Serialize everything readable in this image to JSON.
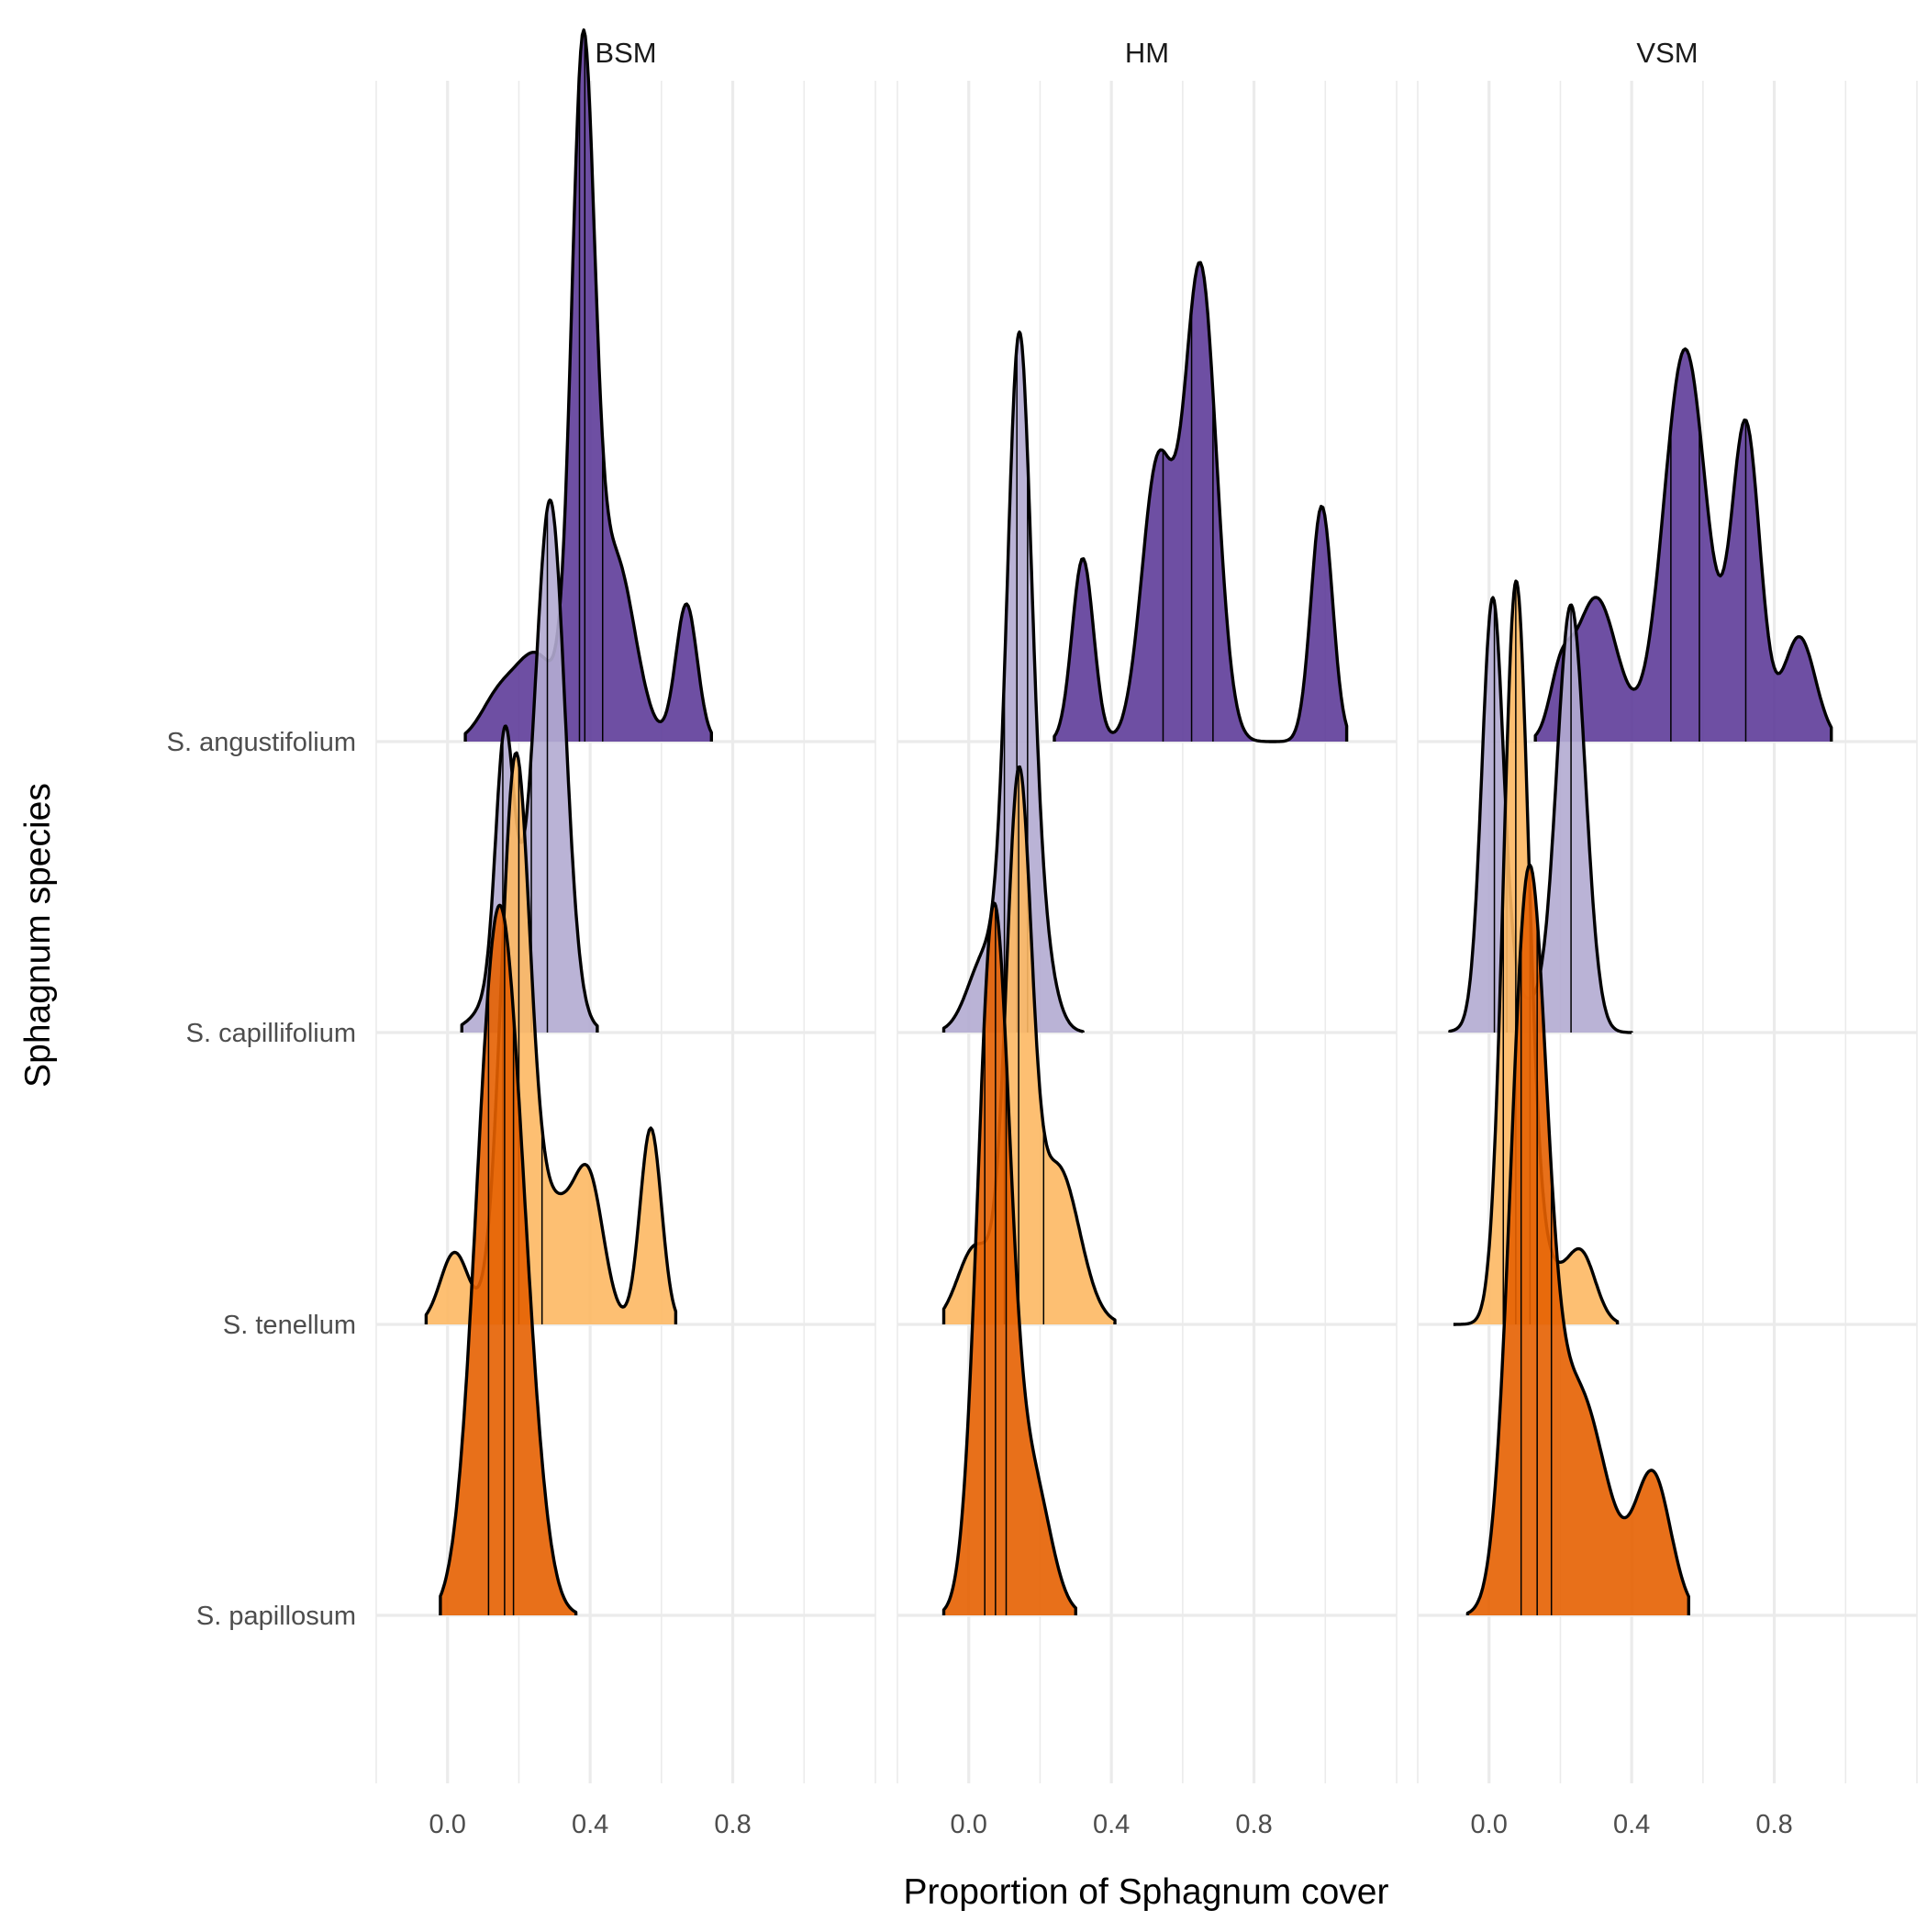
{
  "chart_data": {
    "type": "ridgeline",
    "xlabel": "Proportion of Sphagnum cover",
    "ylabel": "Sphagnum species",
    "facets": [
      "BSM",
      "HM",
      "VSM"
    ],
    "x_ticks": [
      "0.0",
      "0.4",
      "0.8"
    ],
    "x_tick_values": [
      0.0,
      0.4,
      0.8
    ],
    "xlim": [
      -0.2,
      1.2
    ],
    "y_categories": [
      "S. angustifolium",
      "S. capillifolium",
      "S. tenellum",
      "S. papillosum"
    ],
    "grid": true,
    "quantile_lines": [
      0.25,
      0.5,
      0.75
    ],
    "colors": {
      "S. angustifolium": "#5e3c99",
      "S. capillifolium": "#b2abd2",
      "S. tenellum": "#fdb863",
      "S. papillosum": "#e66101"
    },
    "series": [
      {
        "facet": "BSM",
        "species": "S. angustifolium",
        "range": [
          0.05,
          0.74
        ],
        "quantiles": [
          0.37,
          0.385,
          0.435
        ],
        "peaks": [
          [
            0.14,
            0.05,
            0.06
          ],
          [
            0.25,
            0.06,
            0.13
          ],
          [
            0.38,
            0.032,
            1.0
          ],
          [
            0.47,
            0.055,
            0.28
          ],
          [
            0.67,
            0.03,
            0.21
          ]
        ]
      },
      {
        "facet": "HM",
        "species": "S. angustifolium",
        "range": [
          0.24,
          1.06
        ],
        "quantiles": [
          0.545,
          0.625,
          0.685
        ],
        "peaks": [
          [
            0.32,
            0.03,
            0.28
          ],
          [
            0.53,
            0.045,
            0.42
          ],
          [
            0.65,
            0.045,
            0.72
          ],
          [
            0.99,
            0.03,
            0.36
          ]
        ]
      },
      {
        "facet": "VSM",
        "species": "S. angustifolium",
        "range": [
          0.13,
          0.96
        ],
        "quantiles": [
          0.51,
          0.59,
          0.72
        ],
        "peaks": [
          [
            0.2,
            0.03,
            0.08
          ],
          [
            0.3,
            0.06,
            0.22
          ],
          [
            0.55,
            0.06,
            0.6
          ],
          [
            0.72,
            0.04,
            0.48
          ],
          [
            0.87,
            0.045,
            0.16
          ]
        ]
      },
      {
        "facet": "BSM",
        "species": "S. capillifolium",
        "range": [
          0.04,
          0.42
        ],
        "quantiles": [
          0.155,
          0.235,
          0.28
        ],
        "peaks": [
          [
            0.16,
            0.025,
            0.35
          ],
          [
            0.29,
            0.04,
            0.71
          ],
          [
            0.22,
            0.08,
            0.15
          ]
        ]
      },
      {
        "facet": "HM",
        "species": "S. capillifolium",
        "range": [
          -0.07,
          0.32
        ],
        "quantiles": [
          0.1,
          0.135,
          0.165
        ],
        "peaks": [
          [
            0.14,
            0.033,
            0.91
          ],
          [
            0.18,
            0.045,
            0.2
          ],
          [
            0.05,
            0.05,
            0.12
          ]
        ]
      },
      {
        "facet": "VSM",
        "species": "S. capillifolium",
        "range": [
          -0.11,
          0.4
        ],
        "quantiles": [
          0.015,
          0.05,
          0.23
        ],
        "peaks": [
          [
            0.01,
            0.03,
            0.63
          ],
          [
            0.23,
            0.04,
            0.65
          ],
          [
            0.07,
            0.07,
            0.05
          ]
        ]
      },
      {
        "facet": "BSM",
        "species": "S. tenellum",
        "range": [
          -0.06,
          0.64
        ],
        "quantiles": [
          0.155,
          0.2,
          0.265
        ],
        "peaks": [
          [
            0.02,
            0.04,
            0.11
          ],
          [
            0.19,
            0.04,
            0.82
          ],
          [
            0.3,
            0.07,
            0.18
          ],
          [
            0.4,
            0.04,
            0.17
          ],
          [
            0.57,
            0.03,
            0.3
          ]
        ]
      },
      {
        "facet": "HM",
        "species": "S. tenellum",
        "range": [
          -0.07,
          0.41
        ],
        "quantiles": [
          0.1,
          0.14,
          0.21
        ],
        "peaks": [
          [
            0.14,
            0.035,
            0.8
          ],
          [
            0.25,
            0.06,
            0.24
          ],
          [
            0.02,
            0.05,
            0.12
          ]
        ]
      },
      {
        "facet": "VSM",
        "species": "S. tenellum",
        "range": [
          -0.1,
          0.36
        ],
        "quantiles": [
          0.04,
          0.075,
          0.115
        ],
        "peaks": [
          [
            0.075,
            0.035,
            1.08
          ],
          [
            0.26,
            0.04,
            0.1
          ],
          [
            0.14,
            0.06,
            0.1
          ]
        ]
      },
      {
        "facet": "BSM",
        "species": "S. papillosum",
        "range": [
          -0.02,
          0.36
        ],
        "quantiles": [
          0.115,
          0.16,
          0.185
        ],
        "peaks": [
          [
            0.14,
            0.06,
            1.03
          ],
          [
            0.22,
            0.05,
            0.18
          ]
        ]
      },
      {
        "facet": "HM",
        "species": "S. papillosum",
        "range": [
          -0.07,
          0.3
        ],
        "quantiles": [
          0.045,
          0.075,
          0.105
        ],
        "peaks": [
          [
            0.07,
            0.045,
            1.07
          ],
          [
            0.18,
            0.05,
            0.2
          ]
        ]
      },
      {
        "facet": "VSM",
        "species": "S. papillosum",
        "range": [
          -0.06,
          0.56
        ],
        "quantiles": [
          0.09,
          0.135,
          0.175
        ],
        "peaks": [
          [
            0.11,
            0.05,
            1.07
          ],
          [
            0.25,
            0.08,
            0.34
          ],
          [
            0.46,
            0.05,
            0.21
          ]
        ]
      }
    ]
  }
}
